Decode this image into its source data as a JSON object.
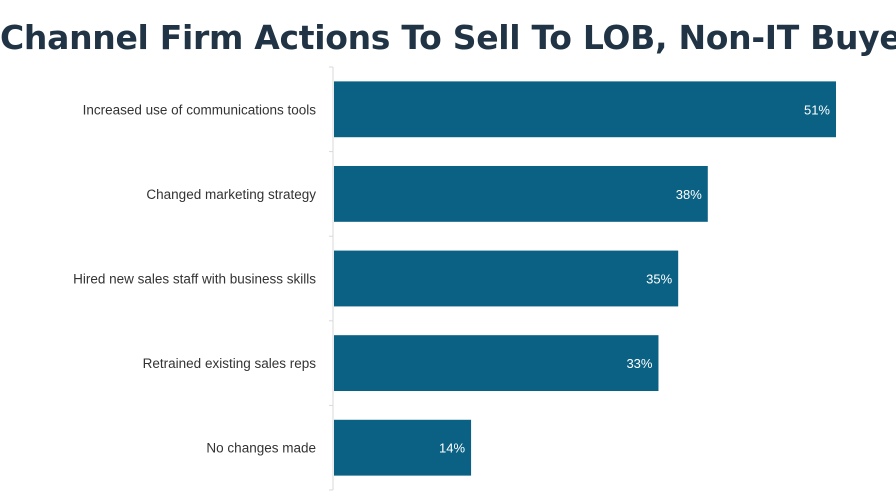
{
  "title": "Channel Firm Actions To Sell To LOB, Non-IT Buyers",
  "colors": {
    "bar": "#0b6184",
    "axis": "#d9d9d9",
    "title": "#213446",
    "label": "#333333"
  },
  "chart_data": {
    "type": "bar",
    "orientation": "horizontal",
    "title": "Channel Firm Actions To Sell To LOB, Non-IT Buyers",
    "xlabel": "",
    "ylabel": "",
    "categories": [
      "Increased use of communications tools",
      "Changed marketing strategy",
      "Hired new sales staff with business skills",
      "Retrained existing sales reps",
      "No changes made"
    ],
    "values": [
      51,
      38,
      35,
      33,
      14
    ],
    "data_labels": [
      "51%",
      "38%",
      "35%",
      "33%",
      "14%"
    ],
    "unit": "%",
    "xlim": [
      0,
      51
    ],
    "grid": false,
    "legend": "none"
  }
}
